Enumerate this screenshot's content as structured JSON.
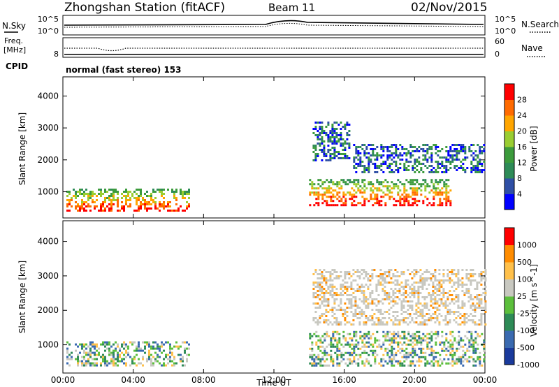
{
  "header": {
    "station": "Zhongshan Station (fitACF)",
    "beam": "Beam 11",
    "date": "02/Nov/2015",
    "cpid_label": "CPID",
    "cpid_value": "normal (fast stereo) 153"
  },
  "top_panels": {
    "nsky_label": "N.Sky",
    "nsky_ticks": [
      "10^5",
      "10^0"
    ],
    "nsearch_label": "N.Search",
    "nsearch_ticks": [
      "10^5",
      "10^0"
    ],
    "freq_label_1": "Freq.",
    "freq_label_2": "[MHz]",
    "freq_ticks": [
      "",
      "8"
    ],
    "nave_label": "Nave",
    "nave_ticks": [
      "60",
      "0"
    ]
  },
  "chart_data": [
    {
      "type": "heatmap",
      "panel": "power",
      "ylabel": "Slant Range [km]",
      "ylim": [
        180,
        4600
      ],
      "yticks": [
        1000,
        2000,
        3000,
        4000
      ],
      "xlim": [
        0,
        24
      ],
      "colorbar_label": "Power [dB]",
      "colorbar_ticks": [
        "28",
        "24",
        "20",
        "16",
        "12",
        "8",
        "4"
      ],
      "colors": [
        "#0000ff",
        "#2f4fa5",
        "#2e8b57",
        "#3c9b3c",
        "#9acd32",
        "#ffa500",
        "#ff6a00",
        "#ff0000"
      ],
      "echo_regions": [
        {
          "t0": 0.2,
          "t1": 7.2,
          "r0": 400,
          "r1": 1100,
          "level": "high"
        },
        {
          "t0": 14.2,
          "t1": 16.3,
          "r0": 2000,
          "r1": 3200,
          "level": "low"
        },
        {
          "t0": 14.0,
          "t1": 22.0,
          "r0": 600,
          "r1": 1400,
          "level": "high"
        },
        {
          "t0": 16.5,
          "t1": 24.0,
          "r0": 1600,
          "r1": 2500,
          "level": "low"
        }
      ]
    },
    {
      "type": "heatmap",
      "panel": "velocity",
      "ylabel": "Slant Range [km]",
      "ylim": [
        180,
        4600
      ],
      "yticks": [
        1000,
        2000,
        3000,
        4000
      ],
      "xlim": [
        0,
        24
      ],
      "xticks": [
        "00:00",
        "04:00",
        "08:00",
        "12:00",
        "16:00",
        "20:00",
        "00:00"
      ],
      "xlabel": "Time UT",
      "colorbar_label": "Velocity [m s^-1]",
      "colorbar_ticks": [
        "1000",
        "500",
        "100",
        "25",
        "-25",
        "-100",
        "-500",
        "-1000"
      ],
      "colors": [
        "#1a3a9c",
        "#3a6ab0",
        "#2e8b57",
        "#5cbf3c",
        "#c8c8c0",
        "#ffc04a",
        "#ff8c00",
        "#ff0000"
      ],
      "echo_regions": [
        {
          "t0": 0.2,
          "t1": 7.2,
          "r0": 400,
          "r1": 1100,
          "level": "mixed-green"
        },
        {
          "t0": 14.2,
          "t1": 24.0,
          "r0": 1600,
          "r1": 3200,
          "level": "grey"
        },
        {
          "t0": 14.0,
          "t1": 24.0,
          "r0": 400,
          "r1": 1400,
          "level": "mixed-green"
        }
      ]
    }
  ]
}
